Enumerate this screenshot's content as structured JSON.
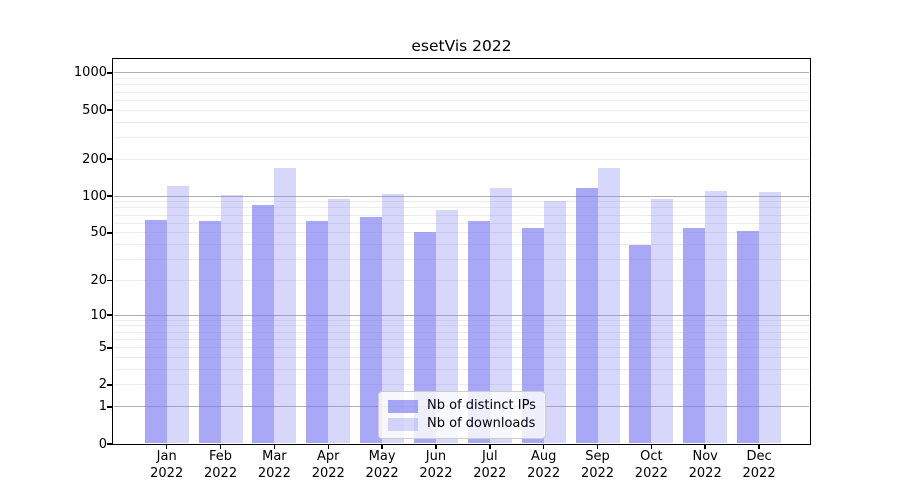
{
  "chart_data": {
    "type": "bar",
    "title": "esetVis 2022",
    "categories": [
      "Jan 2022",
      "Feb 2022",
      "Mar 2022",
      "Apr 2022",
      "May 2022",
      "Jun 2022",
      "Jul 2022",
      "Aug 2022",
      "Sep 2022",
      "Oct 2022",
      "Nov 2022",
      "Dec 2022"
    ],
    "series": [
      {
        "name": "Nb of distinct IPs",
        "color": "rgba(121,121,241,0.65)",
        "values": [
          64,
          62,
          84,
          63,
          67,
          51,
          62,
          55,
          117,
          40,
          55,
          52
        ]
      },
      {
        "name": "Nb of downloads",
        "color": "rgba(121,121,241,0.30)",
        "values": [
          121,
          103,
          168,
          94,
          105,
          77,
          116,
          91,
          170,
          94,
          111,
          109
        ]
      }
    ],
    "xlabel": "",
    "ylabel": "",
    "yscale": "log1p",
    "ylim": [
      0,
      1300
    ],
    "yticks": [
      0,
      1,
      2,
      5,
      10,
      20,
      50,
      100,
      200,
      500,
      1000
    ],
    "grid": true,
    "legend_position": "lower center",
    "colors": {
      "accent_base": "#7979f1",
      "major_grid": "#b0b0b0",
      "minor_grid": "#ececec",
      "spine": "#000000",
      "legend_border": "#cccccc"
    }
  }
}
